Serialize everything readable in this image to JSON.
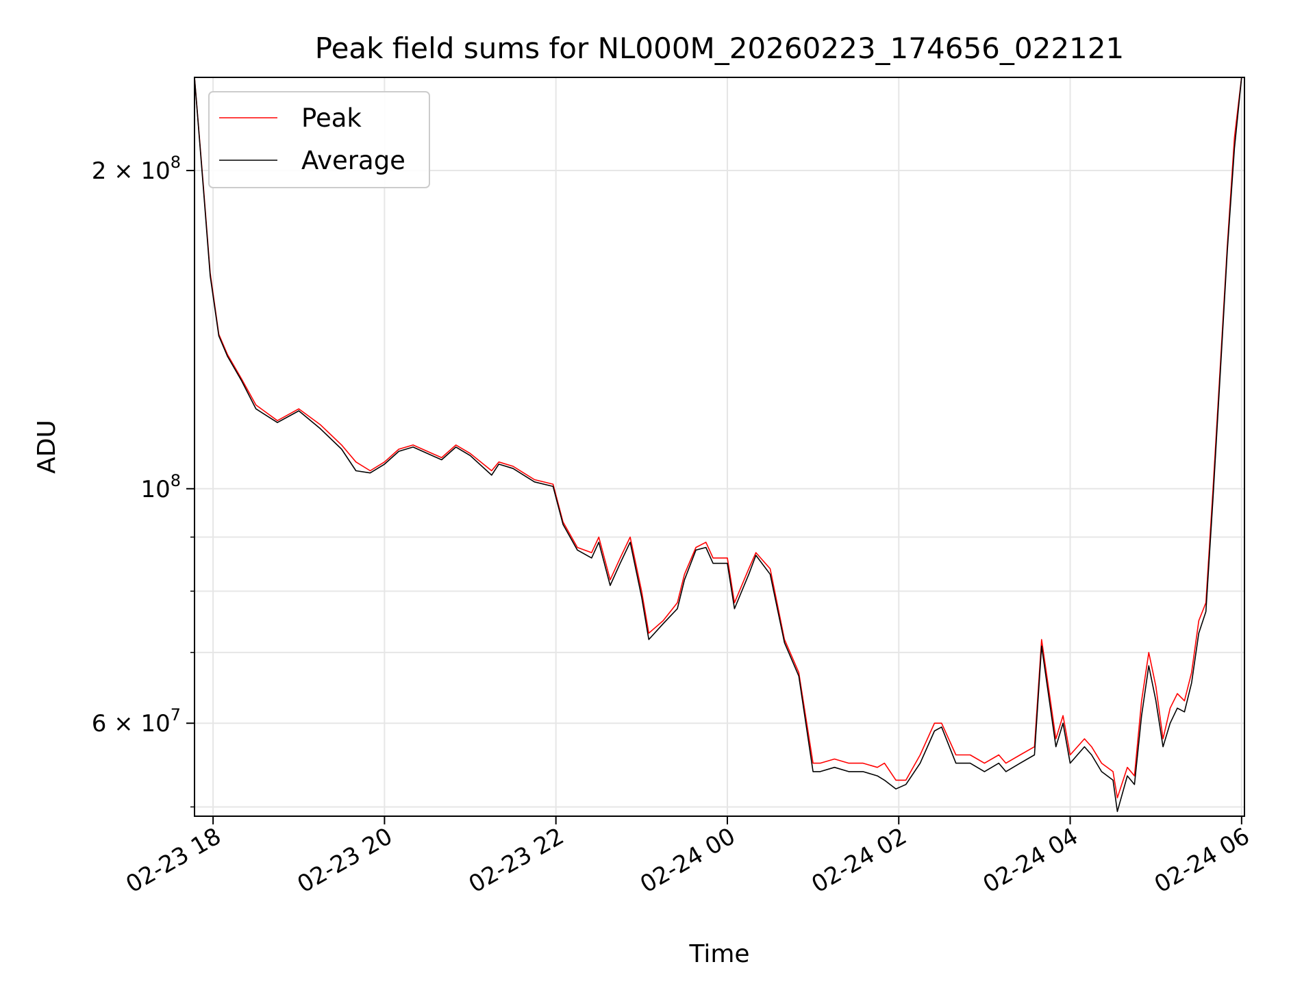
{
  "chart_data": {
    "type": "line",
    "title": "Peak field sums for NL000M_20260223_174656_022121",
    "xlabel": "Time",
    "ylabel": "ADU",
    "y_scale": "log",
    "ylim": [
      49000000,
      245000000
    ],
    "xlim": [
      "2026-02-23 17:47",
      "2026-02-24 06:02"
    ],
    "grid": true,
    "legend_position": "top-left",
    "x_ticks": [
      {
        "t": "2026-02-23 18:00",
        "label": "02-23 18"
      },
      {
        "t": "2026-02-23 20:00",
        "label": "02-23 20"
      },
      {
        "t": "2026-02-23 22:00",
        "label": "02-23 22"
      },
      {
        "t": "2026-02-24 00:00",
        "label": "02-24 00"
      },
      {
        "t": "2026-02-24 02:00",
        "label": "02-24 02"
      },
      {
        "t": "2026-02-24 04:00",
        "label": "02-24 04"
      },
      {
        "t": "2026-02-24 06:00",
        "label": "02-24 06"
      }
    ],
    "y_major_ticks": [
      {
        "value": 60000000,
        "label": "6 × 10",
        "exp": "7"
      },
      {
        "value": 100000000,
        "label": "10",
        "exp": "8"
      },
      {
        "value": 200000000,
        "label": "2 × 10",
        "exp": "8"
      }
    ],
    "y_minor_ticks": [
      50000000,
      70000000,
      80000000,
      90000000
    ],
    "series": [
      {
        "name": "Peak",
        "color": "#ff0000",
        "x": [
          "2026-02-23 17:47",
          "2026-02-23 17:53",
          "2026-02-23 17:58",
          "2026-02-23 18:04",
          "2026-02-23 18:10",
          "2026-02-23 18:20",
          "2026-02-23 18:30",
          "2026-02-23 18:45",
          "2026-02-23 19:00",
          "2026-02-23 19:15",
          "2026-02-23 19:30",
          "2026-02-23 19:40",
          "2026-02-23 19:50",
          "2026-02-23 20:00",
          "2026-02-23 20:10",
          "2026-02-23 20:20",
          "2026-02-23 20:40",
          "2026-02-23 20:50",
          "2026-02-23 21:00",
          "2026-02-23 21:15",
          "2026-02-23 21:20",
          "2026-02-23 21:30",
          "2026-02-23 21:45",
          "2026-02-23 21:58",
          "2026-02-23 22:05",
          "2026-02-23 22:15",
          "2026-02-23 22:25",
          "2026-02-23 22:30",
          "2026-02-23 22:38",
          "2026-02-23 22:45",
          "2026-02-23 22:52",
          "2026-02-23 23:00",
          "2026-02-23 23:05",
          "2026-02-23 23:15",
          "2026-02-23 23:25",
          "2026-02-23 23:30",
          "2026-02-23 23:38",
          "2026-02-23 23:45",
          "2026-02-23 23:50",
          "2026-02-24 00:00",
          "2026-02-24 00:05",
          "2026-02-24 00:15",
          "2026-02-24 00:20",
          "2026-02-24 00:30",
          "2026-02-24 00:40",
          "2026-02-24 00:50",
          "2026-02-24 01:00",
          "2026-02-24 01:05",
          "2026-02-24 01:15",
          "2026-02-24 01:25",
          "2026-02-24 01:35",
          "2026-02-24 01:45",
          "2026-02-24 01:50",
          "2026-02-24 01:58",
          "2026-02-24 02:05",
          "2026-02-24 02:15",
          "2026-02-24 02:25",
          "2026-02-24 02:30",
          "2026-02-24 02:40",
          "2026-02-24 02:50",
          "2026-02-24 03:00",
          "2026-02-24 03:10",
          "2026-02-24 03:15",
          "2026-02-24 03:25",
          "2026-02-24 03:35",
          "2026-02-24 03:40",
          "2026-02-24 03:50",
          "2026-02-24 03:55",
          "2026-02-24 04:00",
          "2026-02-24 04:10",
          "2026-02-24 04:15",
          "2026-02-24 04:22",
          "2026-02-24 04:30",
          "2026-02-24 04:33",
          "2026-02-24 04:40",
          "2026-02-24 04:45",
          "2026-02-24 04:50",
          "2026-02-24 04:55",
          "2026-02-24 05:00",
          "2026-02-24 05:05",
          "2026-02-24 05:10",
          "2026-02-24 05:15",
          "2026-02-24 05:20",
          "2026-02-24 05:25",
          "2026-02-24 05:30",
          "2026-02-24 05:35",
          "2026-02-24 05:40",
          "2026-02-24 05:45",
          "2026-02-24 05:50",
          "2026-02-24 05:55",
          "2026-02-24 06:00"
        ],
        "y": [
          245000000,
          195000000,
          160000000,
          140000000,
          134000000,
          127000000,
          120000000,
          116000000,
          119000000,
          115000000,
          110000000,
          106000000,
          104000000,
          106000000,
          109000000,
          110000000,
          107000000,
          110000000,
          108000000,
          104000000,
          106000000,
          105000000,
          102000000,
          101000000,
          93000000,
          88000000,
          87000000,
          90000000,
          82000000,
          86000000,
          90000000,
          80000000,
          73000000,
          75000000,
          78000000,
          83000000,
          88000000,
          89000000,
          86000000,
          86000000,
          78000000,
          84000000,
          87000000,
          84000000,
          72000000,
          67000000,
          55000000,
          55000000,
          55500000,
          55000000,
          55000000,
          54500000,
          55000000,
          53000000,
          53000000,
          56000000,
          60000000,
          60000000,
          56000000,
          56000000,
          55000000,
          56000000,
          55000000,
          56000000,
          57000000,
          72000000,
          58000000,
          61000000,
          56000000,
          58000000,
          57000000,
          55000000,
          54000000,
          51000000,
          54500000,
          53500000,
          63000000,
          70000000,
          65000000,
          58000000,
          62000000,
          64000000,
          63000000,
          67000000,
          75000000,
          78000000,
          100000000,
          130000000,
          170000000,
          215000000,
          245000000
        ]
      },
      {
        "name": "Average",
        "color": "#000000",
        "x": [
          "2026-02-23 17:47",
          "2026-02-23 17:53",
          "2026-02-23 17:58",
          "2026-02-23 18:04",
          "2026-02-23 18:10",
          "2026-02-23 18:20",
          "2026-02-23 18:30",
          "2026-02-23 18:45",
          "2026-02-23 19:00",
          "2026-02-23 19:15",
          "2026-02-23 19:30",
          "2026-02-23 19:40",
          "2026-02-23 19:50",
          "2026-02-23 20:00",
          "2026-02-23 20:10",
          "2026-02-23 20:20",
          "2026-02-23 20:40",
          "2026-02-23 20:50",
          "2026-02-23 21:00",
          "2026-02-23 21:15",
          "2026-02-23 21:20",
          "2026-02-23 21:30",
          "2026-02-23 21:45",
          "2026-02-23 21:58",
          "2026-02-23 22:05",
          "2026-02-23 22:15",
          "2026-02-23 22:25",
          "2026-02-23 22:30",
          "2026-02-23 22:38",
          "2026-02-23 22:45",
          "2026-02-23 22:52",
          "2026-02-23 23:00",
          "2026-02-23 23:05",
          "2026-02-23 23:15",
          "2026-02-23 23:25",
          "2026-02-23 23:30",
          "2026-02-23 23:38",
          "2026-02-23 23:45",
          "2026-02-23 23:50",
          "2026-02-24 00:00",
          "2026-02-24 00:05",
          "2026-02-24 00:15",
          "2026-02-24 00:20",
          "2026-02-24 00:30",
          "2026-02-24 00:40",
          "2026-02-24 00:50",
          "2026-02-24 01:00",
          "2026-02-24 01:05",
          "2026-02-24 01:15",
          "2026-02-24 01:25",
          "2026-02-24 01:35",
          "2026-02-24 01:45",
          "2026-02-24 01:50",
          "2026-02-24 01:58",
          "2026-02-24 02:05",
          "2026-02-24 02:15",
          "2026-02-24 02:25",
          "2026-02-24 02:30",
          "2026-02-24 02:40",
          "2026-02-24 02:50",
          "2026-02-24 03:00",
          "2026-02-24 03:10",
          "2026-02-24 03:15",
          "2026-02-24 03:25",
          "2026-02-24 03:35",
          "2026-02-24 03:40",
          "2026-02-24 03:50",
          "2026-02-24 03:55",
          "2026-02-24 04:00",
          "2026-02-24 04:10",
          "2026-02-24 04:15",
          "2026-02-24 04:22",
          "2026-02-24 04:30",
          "2026-02-24 04:33",
          "2026-02-24 04:40",
          "2026-02-24 04:45",
          "2026-02-24 04:50",
          "2026-02-24 04:55",
          "2026-02-24 05:00",
          "2026-02-24 05:05",
          "2026-02-24 05:10",
          "2026-02-24 05:15",
          "2026-02-24 05:20",
          "2026-02-24 05:25",
          "2026-02-24 05:30",
          "2026-02-24 05:35",
          "2026-02-24 05:40",
          "2026-02-24 05:45",
          "2026-02-24 05:50",
          "2026-02-24 05:55",
          "2026-02-24 06:00"
        ],
        "y": [
          245000000,
          194000000,
          159000000,
          139500000,
          133500000,
          126500000,
          119000000,
          115500000,
          118500000,
          114000000,
          109000000,
          104000000,
          103500000,
          105500000,
          108500000,
          109500000,
          106500000,
          109500000,
          107500000,
          103000000,
          105500000,
          104500000,
          101500000,
          100500000,
          92500000,
          87500000,
          86000000,
          89000000,
          81000000,
          85000000,
          89000000,
          79000000,
          72000000,
          74500000,
          77000000,
          82000000,
          87500000,
          88000000,
          85000000,
          85000000,
          77000000,
          83000000,
          86500000,
          83000000,
          71500000,
          66500000,
          54000000,
          54000000,
          54500000,
          54000000,
          54000000,
          53500000,
          53000000,
          52000000,
          52500000,
          55000000,
          59000000,
          59500000,
          55000000,
          55000000,
          54000000,
          55000000,
          54000000,
          55000000,
          56000000,
          71000000,
          57000000,
          60000000,
          55000000,
          57000000,
          56000000,
          54000000,
          53000000,
          49500000,
          53500000,
          52500000,
          61000000,
          68000000,
          63000000,
          57000000,
          60000000,
          62000000,
          61500000,
          65500000,
          73000000,
          76500000,
          98000000,
          128000000,
          168000000,
          210000000,
          245000000
        ]
      }
    ]
  }
}
